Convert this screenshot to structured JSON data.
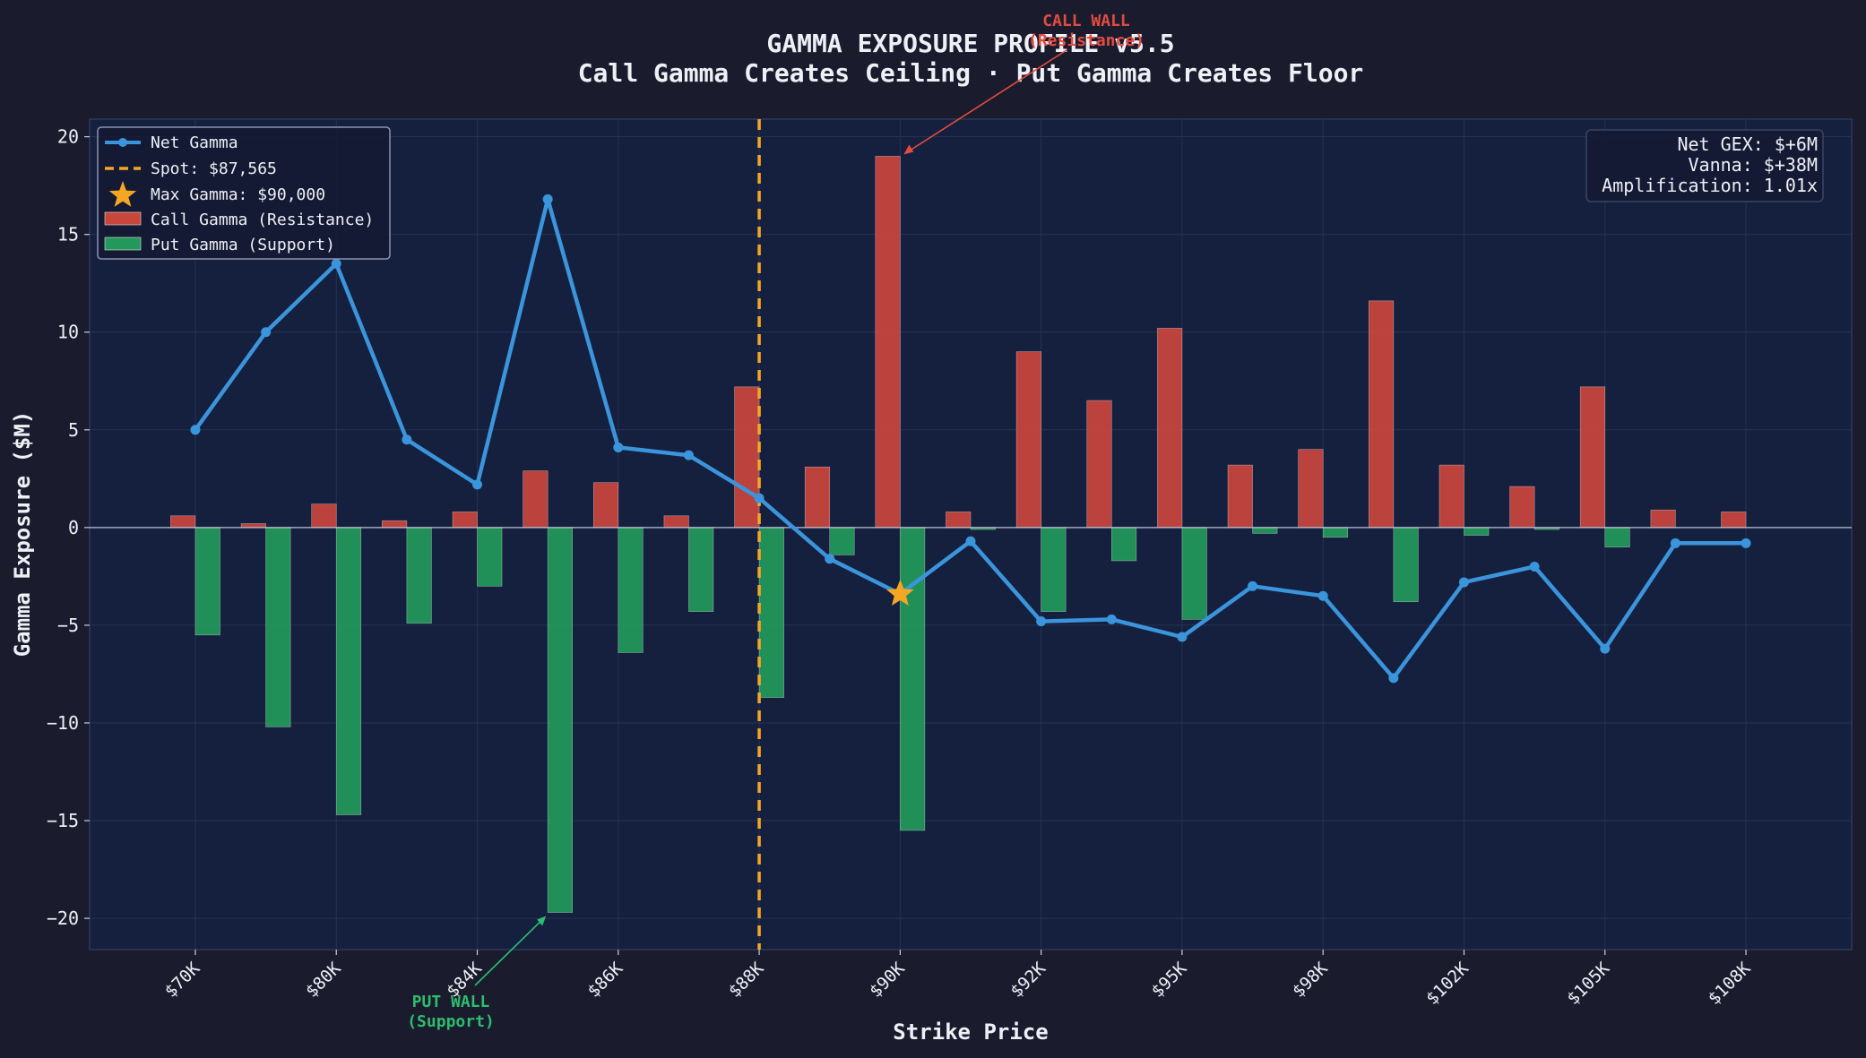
{
  "chart_data": {
    "type": "bar",
    "title": "GAMMA EXPOSURE PROFILE v5.5",
    "subtitle": "Call Gamma Creates Ceiling · Put Gamma Creates Floor",
    "xlabel": "Strike Price",
    "ylabel": "Gamma Exposure ($M)",
    "ylim": [
      -21.6,
      20.9
    ],
    "yticks": [
      20,
      15,
      10,
      5,
      0,
      -5,
      -10,
      -15,
      -20
    ],
    "ytick_labels": [
      "20",
      "15",
      "10",
      "5",
      "0",
      "−5",
      "−10",
      "−15",
      "−20"
    ],
    "x_positions": [
      0,
      1,
      2,
      3,
      4,
      5,
      6,
      7,
      8,
      9,
      10,
      11,
      12,
      13,
      14,
      15,
      16,
      17,
      18,
      19,
      20,
      21,
      22
    ],
    "xlim": [
      -1.5,
      23.5
    ],
    "xticks": [
      {
        "pos": 0,
        "label": "$70K"
      },
      {
        "pos": 2,
        "label": "$80K"
      },
      {
        "pos": 4,
        "label": "$84K"
      },
      {
        "pos": 6,
        "label": "$86K"
      },
      {
        "pos": 8,
        "label": "$88K"
      },
      {
        "pos": 10,
        "label": "$90K"
      },
      {
        "pos": 12,
        "label": "$92K"
      },
      {
        "pos": 14,
        "label": "$95K"
      },
      {
        "pos": 16,
        "label": "$98K"
      },
      {
        "pos": 18,
        "label": "$102K"
      },
      {
        "pos": 20,
        "label": "$105K"
      },
      {
        "pos": 22,
        "label": "$108K"
      }
    ],
    "series": [
      {
        "name": "Call Gamma (Resistance)",
        "color": "#c9463d",
        "values": [
          0.6,
          0.2,
          1.2,
          0.35,
          0.8,
          2.9,
          2.3,
          0.6,
          7.2,
          3.1,
          19.0,
          0.8,
          9.0,
          6.5,
          10.2,
          3.2,
          4.0,
          11.6,
          3.2,
          2.1,
          7.2,
          0.9,
          0.8
        ]
      },
      {
        "name": "Put Gamma (Support)",
        "color": "#22995a",
        "values": [
          -5.5,
          -10.2,
          -14.7,
          -4.9,
          -3.0,
          -19.7,
          -6.4,
          -4.3,
          -8.7,
          -1.4,
          -15.5,
          -0.1,
          -4.3,
          -1.7,
          -4.7,
          -0.3,
          -0.5,
          -3.8,
          -0.4,
          -0.1,
          -1.0,
          0,
          0
        ]
      },
      {
        "name": "Net Gamma",
        "color": "#3a95dc",
        "values": [
          5.0,
          10.0,
          13.5,
          4.5,
          2.2,
          16.8,
          4.1,
          3.7,
          1.5,
          -1.6,
          -3.4,
          -0.7,
          -4.8,
          -4.7,
          -5.6,
          -3.0,
          -3.5,
          -7.7,
          -2.8,
          -2.0,
          -6.2,
          -0.8,
          -0.8
        ]
      }
    ],
    "spot": {
      "label": "Spot: $87,565",
      "pos": 8.0,
      "color": "#f5a623"
    },
    "max_gamma": {
      "label": "Max Gamma: $90,000",
      "pos": 10,
      "value": -3.4,
      "color": "#f5a623"
    },
    "legend": [
      "Net Gamma",
      "Spot: $87,565",
      "Max Gamma: $90,000",
      "Call Gamma (Resistance)",
      "Put Gamma (Support)"
    ],
    "legend_position": "top-left",
    "info_box": {
      "position": "top-right",
      "lines": [
        "Net GEX: $+6M",
        "Vanna: $+38M",
        "Amplification: 1.01x"
      ]
    },
    "annotations": [
      {
        "lines": [
          "CALL WALL",
          "(Resistance)"
        ],
        "color": "#e24c3f",
        "target_pos": 10,
        "target_value": 19.0
      },
      {
        "lines": [
          "PUT WALL",
          "(Support)"
        ],
        "color": "#2dbd6e",
        "target_pos": 5,
        "target_value": -19.7
      }
    ]
  }
}
